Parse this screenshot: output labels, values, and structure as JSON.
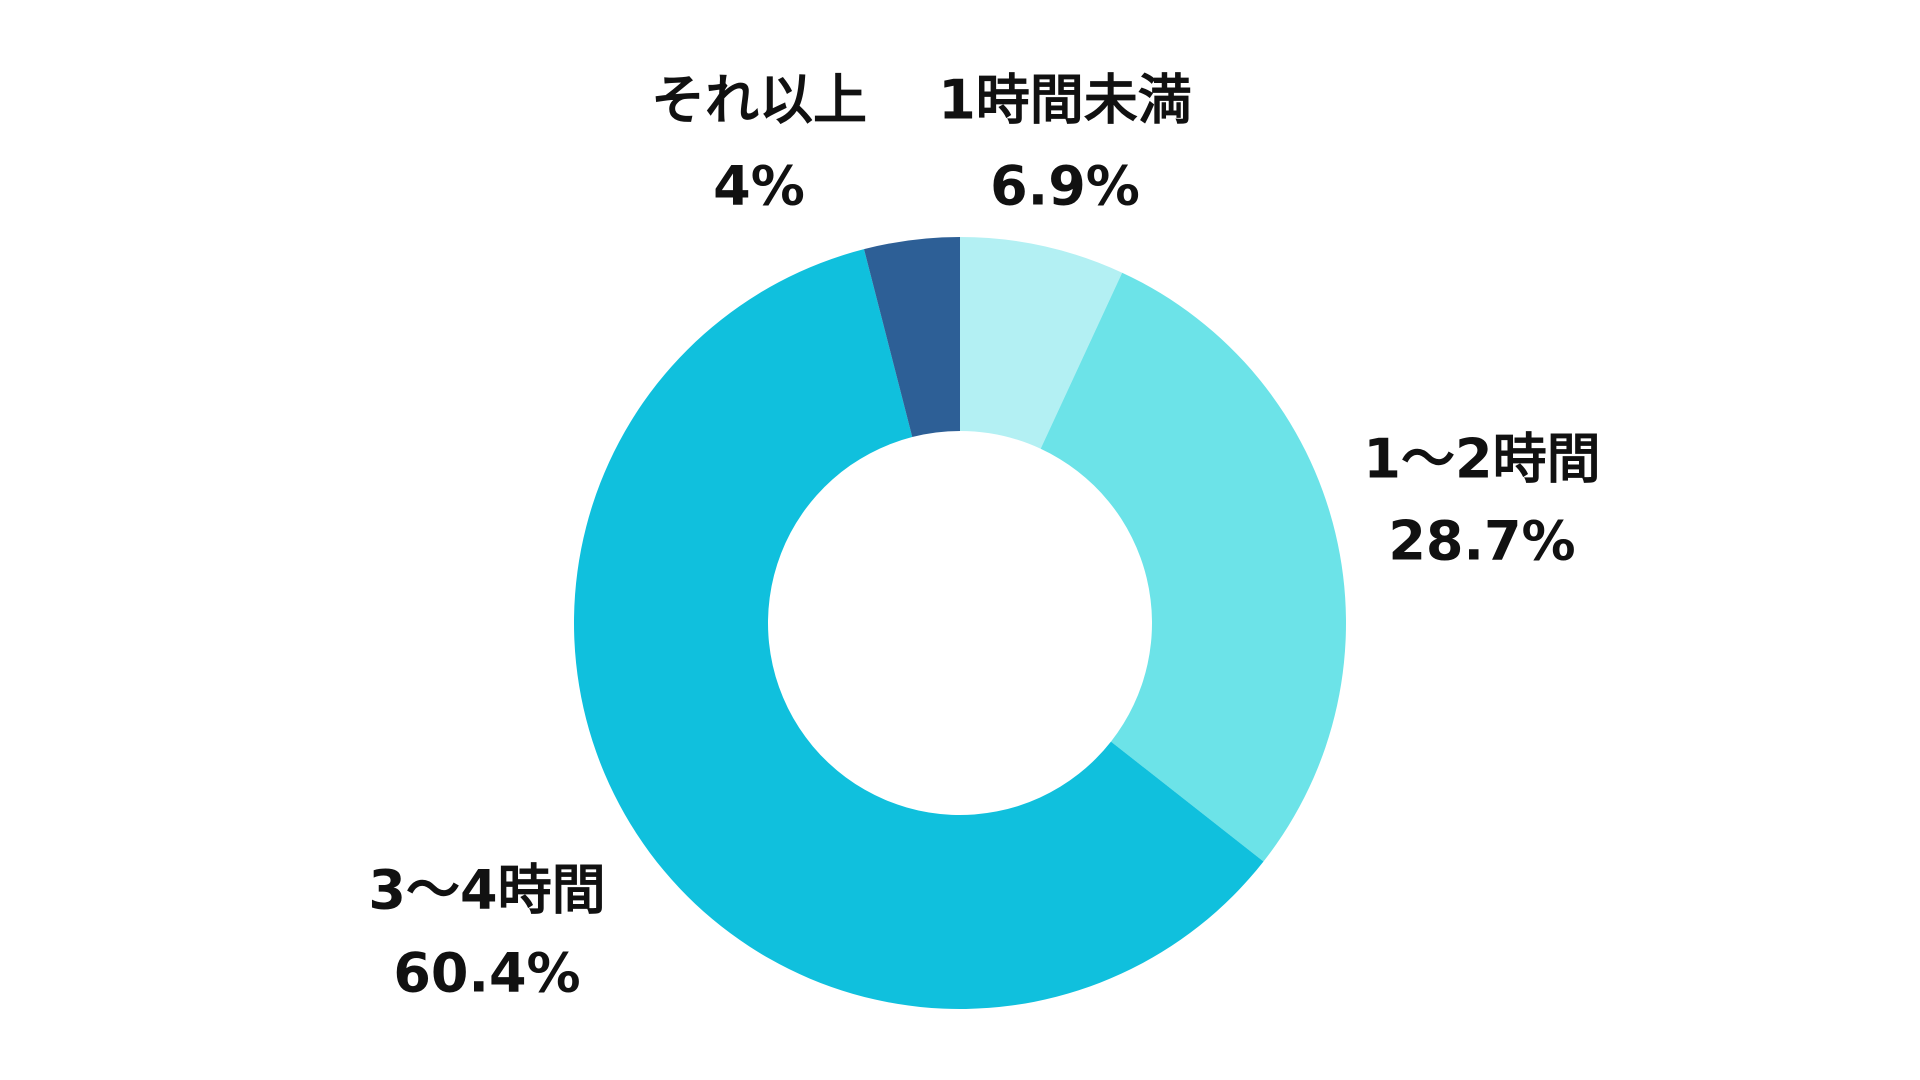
{
  "chart_data": {
    "type": "donut",
    "categories": [
      "1時間未満",
      "1〜2時間",
      "3〜4時間",
      "それ以上"
    ],
    "values": [
      6.9,
      28.7,
      60.4,
      4
    ],
    "value_labels": [
      "6.9%",
      "28.7%",
      "60.4%",
      "4%"
    ],
    "colors": [
      "#b3f0f3",
      "#6ce3e8",
      "#10c0dd",
      "#2d5f96"
    ]
  }
}
